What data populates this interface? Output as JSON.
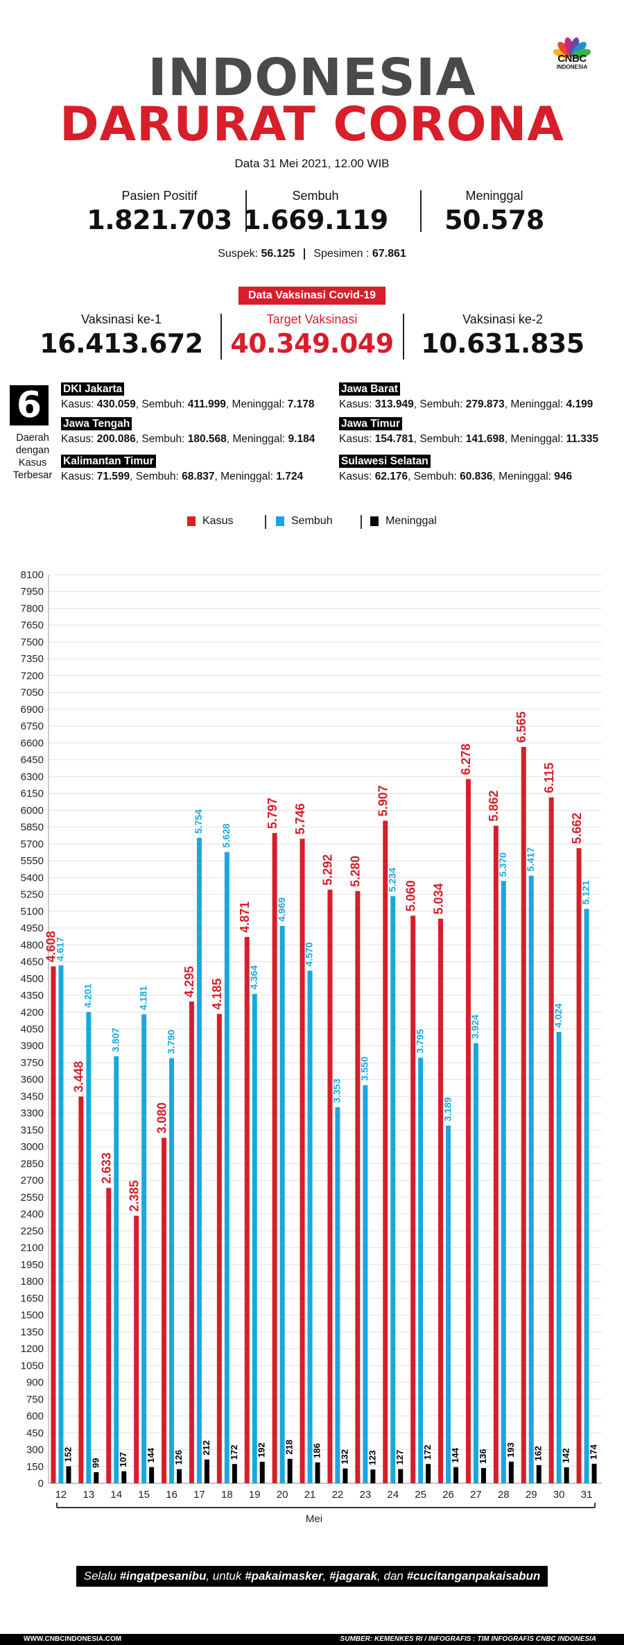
{
  "brand": {
    "name": "CNBC",
    "sub": "INDONESIA",
    "colors": [
      "#f6b41a",
      "#e8482c",
      "#c62a7a",
      "#6a4aa0",
      "#1e8fd0",
      "#3cb14a"
    ]
  },
  "header": {
    "title_line1": "INDONESIA",
    "title_line2": "DARURAT CORONA",
    "date": "Data 31 Mei 2021, 12.00 WIB"
  },
  "stats": [
    {
      "label": "Pasien Positif",
      "value": "1.821.703"
    },
    {
      "label": "Sembuh",
      "value": "1.669.119"
    },
    {
      "label": "Meninggal",
      "value": "50.578"
    }
  ],
  "extra": {
    "suspek_label": "Suspek: ",
    "suspek_value": "56.125",
    "spesimen_label": "Spesimen : ",
    "spesimen_value": "67.861"
  },
  "vaccine": {
    "badge": "Data Vaksinasi Covid-19",
    "items": [
      {
        "label": "Vaksinasi ke-1",
        "value": "16.413.672"
      },
      {
        "label": "Target Vaksinasi",
        "value": "40.349.049"
      },
      {
        "label": "Vaksinasi ke-2",
        "value": "10.631.835"
      }
    ]
  },
  "regions": {
    "count": "6",
    "caption": [
      "Daerah",
      "dengan",
      "Kasus",
      "Terbesar"
    ],
    "items": [
      {
        "name": "DKI Jakarta",
        "kasus": "430.059",
        "sembuh": "411.999",
        "meninggal": "7.178"
      },
      {
        "name": "Jawa Barat",
        "kasus": "313.949",
        "sembuh": "279.873",
        "meninggal": "4.199"
      },
      {
        "name": "Jawa Tengah",
        "kasus": "200.086",
        "sembuh": "180.568",
        "meninggal": "9.184"
      },
      {
        "name": "Jawa Timur",
        "kasus": "154.781",
        "sembuh": "141.698",
        "meninggal": "11.335"
      },
      {
        "name": "Kalimantan Timur",
        "kasus": "71.599",
        "sembuh": "68.837",
        "meninggal": "1.724"
      },
      {
        "name": "Sulawesi Selatan",
        "kasus": "62.176",
        "sembuh": "60.836",
        "meninggal": "946"
      }
    ],
    "label_kasus": "Kasus: ",
    "label_sembuh": "Sembuh: ",
    "label_meninggal": "Meninggal: "
  },
  "chart_data": {
    "type": "bar",
    "title": "",
    "xlabel": "Mei",
    "ylabel": "",
    "ylim": [
      0,
      8100
    ],
    "ytick_step": 150,
    "categories": [
      "12",
      "13",
      "14",
      "15",
      "16",
      "17",
      "18",
      "19",
      "20",
      "21",
      "22",
      "23",
      "24",
      "25",
      "26",
      "27",
      "28",
      "29",
      "30",
      "31"
    ],
    "series": [
      {
        "name": "Kasus",
        "color": "#d71e2a",
        "values": [
          4608,
          3448,
          2633,
          2385,
          3080,
          4295,
          4185,
          4871,
          5797,
          5746,
          5292,
          5280,
          5907,
          5060,
          5034,
          6278,
          5862,
          6565,
          6115,
          5662
        ],
        "labels": [
          "4.608",
          "3.448",
          "2.633",
          "2.385",
          "3.080",
          "4.295",
          "4.185",
          "4.871",
          "5.797",
          "5.746",
          "5.292",
          "5.280",
          "5.907",
          "5.060",
          "5.034",
          "6.278",
          "5.862",
          "6.565",
          "6.115",
          "5.662"
        ]
      },
      {
        "name": "Sembuh",
        "color": "#1aa7e0",
        "values": [
          4617,
          4201,
          3807,
          4181,
          3790,
          5754,
          5628,
          4364,
          4969,
          4570,
          3353,
          3550,
          5234,
          3795,
          3189,
          3924,
          5370,
          5417,
          4024,
          5121
        ],
        "labels": [
          "4.617",
          "4.201",
          "3.807",
          "4.181",
          "3.790",
          "5.754",
          "5.628",
          "4.364",
          "4.969",
          "4.570",
          "3.353",
          "3.550",
          "5.234",
          "3.795",
          "3.189",
          "3.924",
          "5.370",
          "5.417",
          "4.024",
          "5.121"
        ]
      },
      {
        "name": "Meninggal",
        "color": "#000000",
        "values": [
          152,
          99,
          107,
          144,
          126,
          212,
          172,
          192,
          218,
          186,
          132,
          123,
          127,
          172,
          144,
          136,
          193,
          162,
          142,
          174
        ],
        "labels": [
          "152",
          "99",
          "107",
          "144",
          "126",
          "212",
          "172",
          "192",
          "218",
          "186",
          "132",
          "123",
          "127",
          "172",
          "144",
          "136",
          "193",
          "162",
          "142",
          "174"
        ]
      }
    ]
  },
  "footer": {
    "slogan_pre": "Selalu ",
    "slogan_1": "#ingatpesanibu",
    "slogan_mid1": ", untuk ",
    "slogan_2": "#pakaimasker",
    "slogan_mid2": ", ",
    "slogan_3": "#jagarak",
    "slogan_mid3": ", dan ",
    "slogan_4": "#cucitanganpakaisabun",
    "website": "WWW.CNBCINDONESIA.COM",
    "source": "SUMBER: KEMENKES RI / INFOGRAFIS : TIM INFOGRAFIS CNBC INDONESIA"
  }
}
